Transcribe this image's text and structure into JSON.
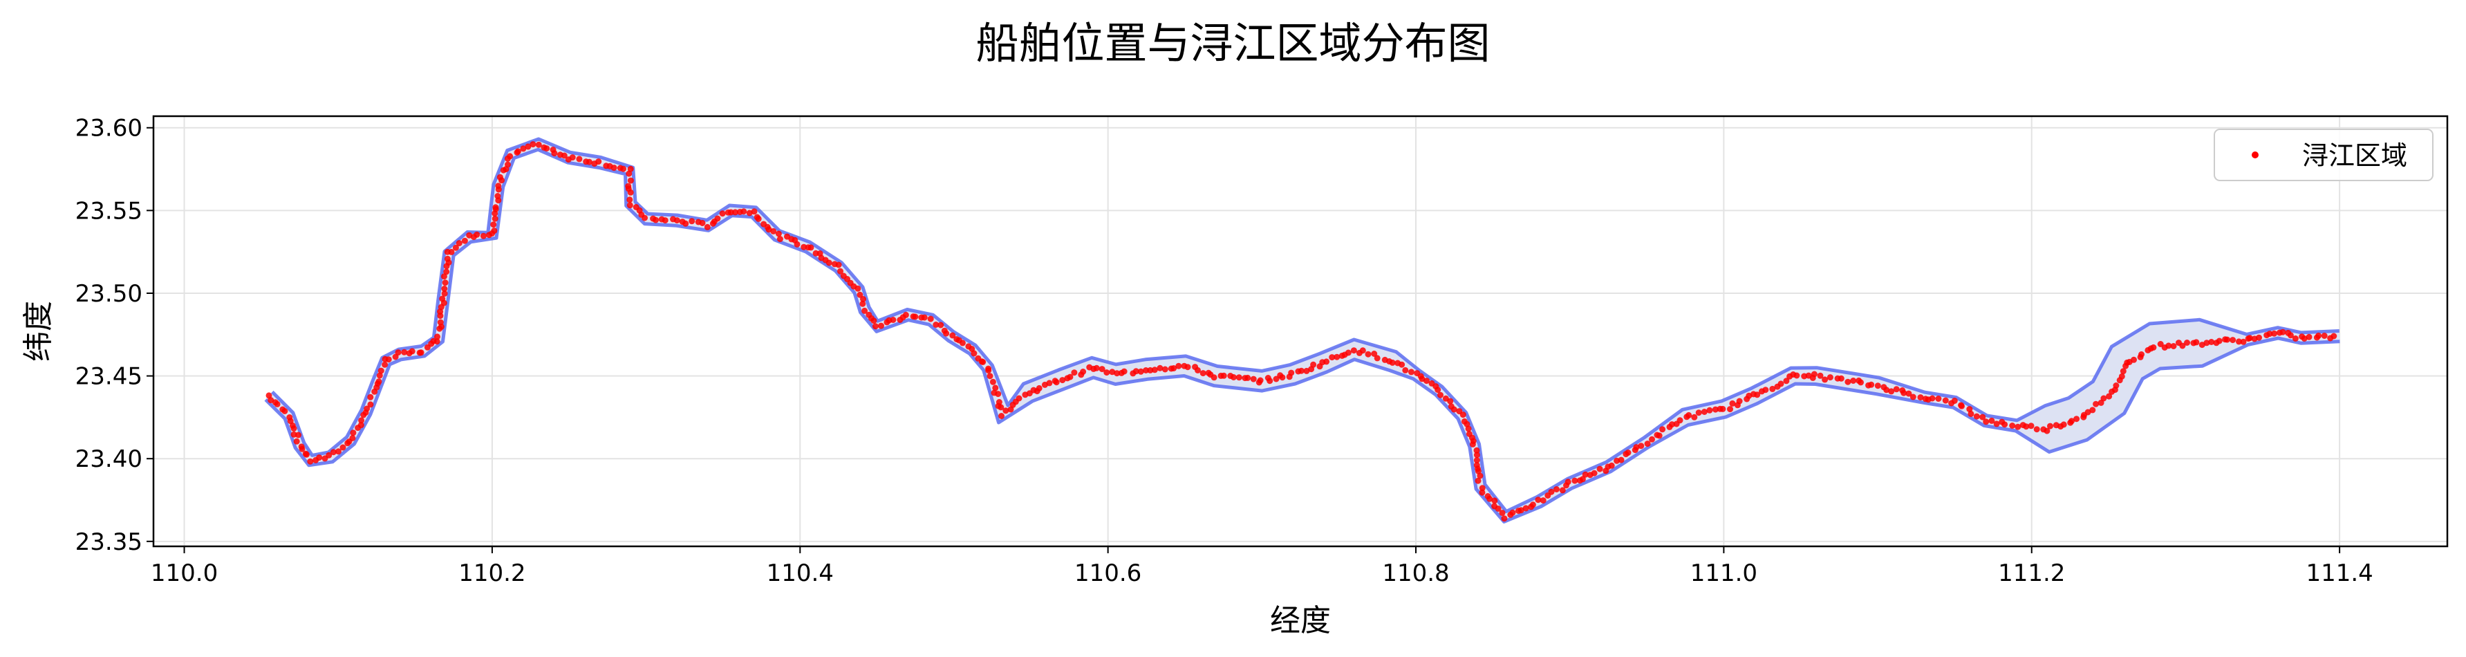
{
  "chart_data": {
    "type": "scatter",
    "title": "船舶位置与浔江区域分布图",
    "xlabel": "经度",
    "ylabel": "纬度",
    "xlim": [
      109.98,
      111.47
    ],
    "ylim": [
      23.347,
      23.607
    ],
    "xticks": [
      "110.0",
      "110.2",
      "110.4",
      "110.6",
      "110.8",
      "111.0",
      "111.2",
      "111.4"
    ],
    "yticks": [
      "23.35",
      "23.40",
      "23.45",
      "23.50",
      "23.55",
      "23.60"
    ],
    "grid": true,
    "legend": {
      "placement": "top-right",
      "entries": [
        "浔江区域"
      ]
    },
    "colors": {
      "points": "#ff0000",
      "river_outline": "#5a6cf0",
      "river_fill": "#dde2f3"
    },
    "river_centerline": [
      [
        110.055,
        23.438
      ],
      [
        110.068,
        23.426
      ],
      [
        110.075,
        23.408
      ],
      [
        110.082,
        23.399
      ],
      [
        110.095,
        23.401
      ],
      [
        110.108,
        23.411
      ],
      [
        110.118,
        23.428
      ],
      [
        110.125,
        23.445
      ],
      [
        110.131,
        23.459
      ],
      [
        110.14,
        23.463
      ],
      [
        110.155,
        23.465
      ],
      [
        110.165,
        23.472
      ],
      [
        110.168,
        23.495
      ],
      [
        110.172,
        23.524
      ],
      [
        110.185,
        23.534
      ],
      [
        110.2,
        23.535
      ],
      [
        110.204,
        23.565
      ],
      [
        110.212,
        23.584
      ],
      [
        110.23,
        23.59
      ],
      [
        110.25,
        23.582
      ],
      [
        110.27,
        23.579
      ],
      [
        110.289,
        23.574
      ],
      [
        110.29,
        23.554
      ],
      [
        110.3,
        23.545
      ],
      [
        110.32,
        23.544
      ],
      [
        110.34,
        23.541
      ],
      [
        110.355,
        23.55
      ],
      [
        110.37,
        23.549
      ],
      [
        110.385,
        23.535
      ],
      [
        110.405,
        23.528
      ],
      [
        110.425,
        23.516
      ],
      [
        110.438,
        23.502
      ],
      [
        110.442,
        23.49
      ],
      [
        110.45,
        23.48
      ],
      [
        110.47,
        23.487
      ],
      [
        110.485,
        23.484
      ],
      [
        110.498,
        23.474
      ],
      [
        110.512,
        23.466
      ],
      [
        110.522,
        23.455
      ],
      [
        110.532,
        23.427
      ],
      [
        110.548,
        23.44
      ],
      [
        110.57,
        23.448
      ],
      [
        110.59,
        23.455
      ],
      [
        110.605,
        23.451
      ],
      [
        110.625,
        23.454
      ],
      [
        110.65,
        23.456
      ],
      [
        110.67,
        23.45
      ],
      [
        110.7,
        23.447
      ],
      [
        110.72,
        23.451
      ],
      [
        110.74,
        23.458
      ],
      [
        110.76,
        23.466
      ],
      [
        110.785,
        23.459
      ],
      [
        110.8,
        23.451
      ],
      [
        110.815,
        23.441
      ],
      [
        110.83,
        23.426
      ],
      [
        110.838,
        23.408
      ],
      [
        110.842,
        23.383
      ],
      [
        110.858,
        23.365
      ],
      [
        110.88,
        23.374
      ],
      [
        110.9,
        23.385
      ],
      [
        110.925,
        23.395
      ],
      [
        110.95,
        23.41
      ],
      [
        110.975,
        23.425
      ],
      [
        111.0,
        23.43
      ],
      [
        111.02,
        23.438
      ],
      [
        111.045,
        23.45
      ],
      [
        111.06,
        23.45
      ],
      [
        111.08,
        23.447
      ],
      [
        111.1,
        23.444
      ],
      [
        111.13,
        23.437
      ],
      [
        111.15,
        23.434
      ],
      [
        111.17,
        23.423
      ],
      [
        111.19,
        23.42
      ],
      [
        111.21,
        23.418
      ],
      [
        111.23,
        23.424
      ],
      [
        111.25,
        23.437
      ],
      [
        111.262,
        23.458
      ],
      [
        111.28,
        23.468
      ],
      [
        111.31,
        23.47
      ],
      [
        111.34,
        23.472
      ],
      [
        111.36,
        23.476
      ],
      [
        111.375,
        23.473
      ],
      [
        111.4,
        23.474
      ]
    ]
  }
}
